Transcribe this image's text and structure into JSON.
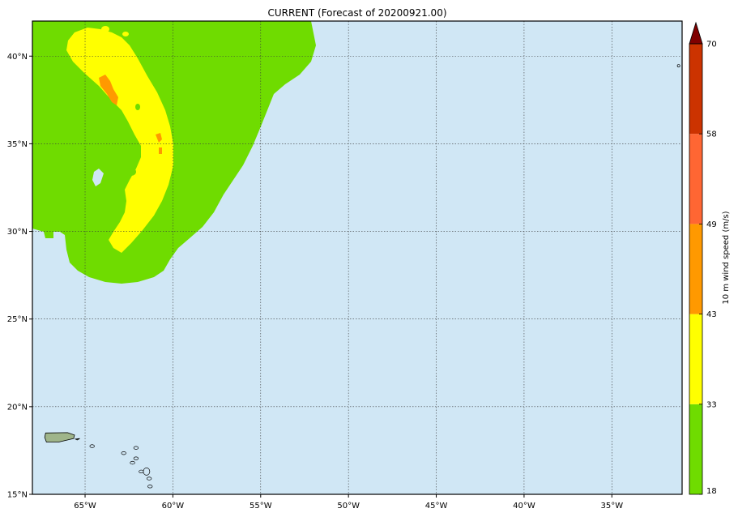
{
  "title": "CURRENT (Forecast of 20200921.00)",
  "map": {
    "lon_range": [
      -68,
      -31
    ],
    "lat_range": [
      15,
      42
    ],
    "lon_ticks": [
      {
        "value": -65,
        "label": "65°W"
      },
      {
        "value": -60,
        "label": "60°W"
      },
      {
        "value": -55,
        "label": "55°W"
      },
      {
        "value": -50,
        "label": "50°W"
      },
      {
        "value": -45,
        "label": "45°W"
      },
      {
        "value": -40,
        "label": "40°W"
      },
      {
        "value": -35,
        "label": "35°W"
      }
    ],
    "lat_ticks": [
      {
        "value": 15,
        "label": "15°N"
      },
      {
        "value": 20,
        "label": "20°N"
      },
      {
        "value": 25,
        "label": "25°N"
      },
      {
        "value": 30,
        "label": "30°N"
      },
      {
        "value": 35,
        "label": "35°N"
      },
      {
        "value": 40,
        "label": "40°N"
      }
    ],
    "ocean_color": "#d0e7f5",
    "gridlines": true,
    "field": "10 m wind speed",
    "land_features": [
      "puerto-rico",
      "lesser-antilles",
      "ocean-islet"
    ]
  },
  "colorbar": {
    "label": "10 m wind speed (m/s)",
    "extend": "max",
    "levels": [
      {
        "from": 18,
        "to": 33,
        "color": "#6fdc00"
      },
      {
        "from": 33,
        "to": 43,
        "color": "#ffff00"
      },
      {
        "from": 43,
        "to": 49,
        "color": "#ff9900"
      },
      {
        "from": 49,
        "to": 58,
        "color": "#ff6633"
      },
      {
        "from": 58,
        "to": 70,
        "color": "#cc3300"
      }
    ],
    "extend_color": "#800000",
    "tick_labels": [
      "18",
      "33",
      "43",
      "49",
      "58",
      "70"
    ]
  }
}
